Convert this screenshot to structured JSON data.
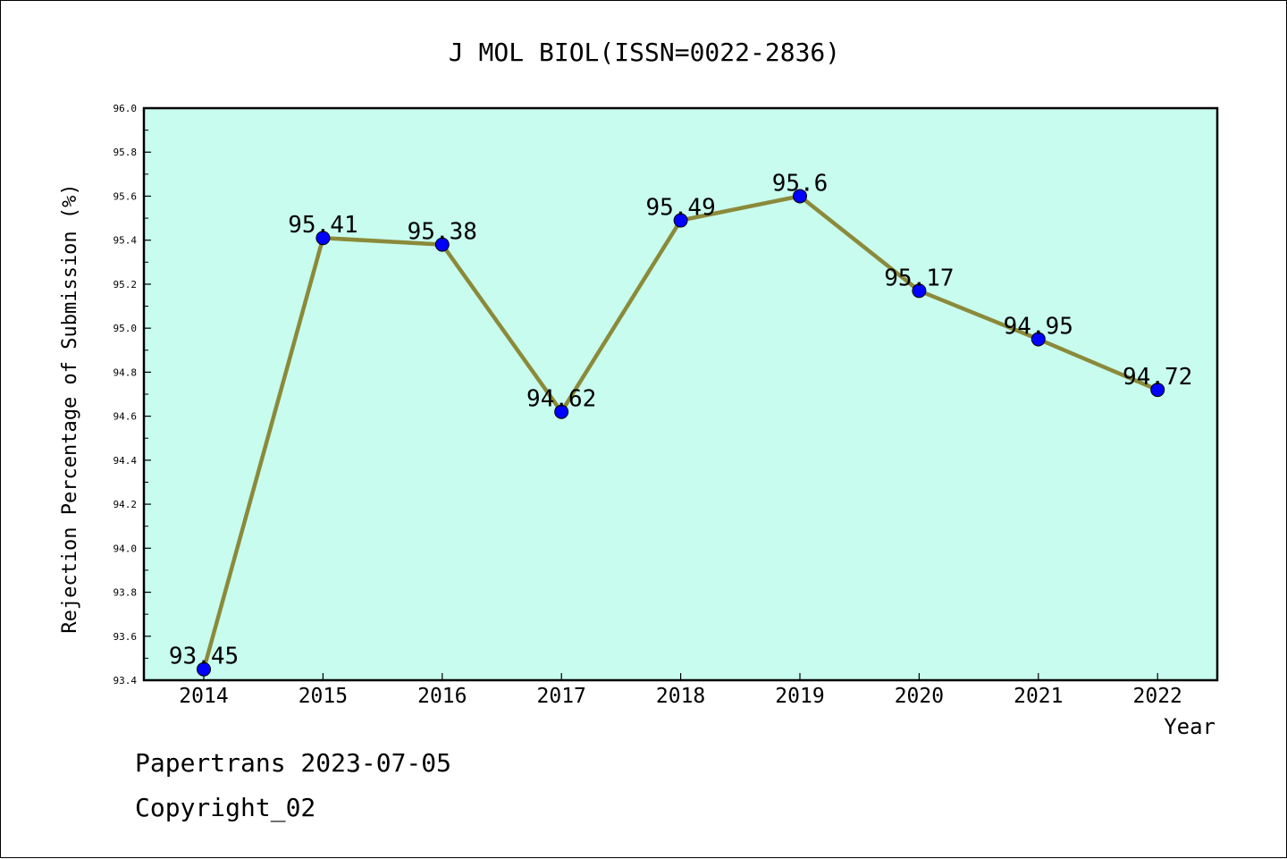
{
  "chart_data": {
    "type": "line",
    "title": "J MOL BIOL(ISSN=0022-2836)",
    "xlabel": "Year",
    "ylabel": "Rejection Percentage of Submission (%)",
    "categories": [
      "2014",
      "2015",
      "2016",
      "2017",
      "2018",
      "2019",
      "2020",
      "2021",
      "2022"
    ],
    "series": [
      {
        "values": [
          93.45,
          95.41,
          95.38,
          94.62,
          95.49,
          95.6,
          95.17,
          94.95,
          94.72
        ],
        "data_labels": [
          "93.45",
          "95.41",
          "95.38",
          "94.62",
          "95.49",
          "95.6",
          "95.17",
          "94.95",
          "94.72"
        ]
      }
    ],
    "ylim": [
      93.4,
      96.0
    ],
    "y_ticks": [
      "93.4",
      "93.6",
      "93.8",
      "94.0",
      "94.2",
      "94.4",
      "94.6",
      "94.8",
      "95.0",
      "95.2",
      "95.4",
      "95.6",
      "95.8",
      "96.0"
    ],
    "grid": false,
    "colors": {
      "plot_background": "#c8fcee",
      "line": "#8b8a3a",
      "marker": "#0000ff"
    }
  },
  "footer": {
    "line1": "Papertrans 2023-07-05",
    "line2": "Copyright_02"
  }
}
